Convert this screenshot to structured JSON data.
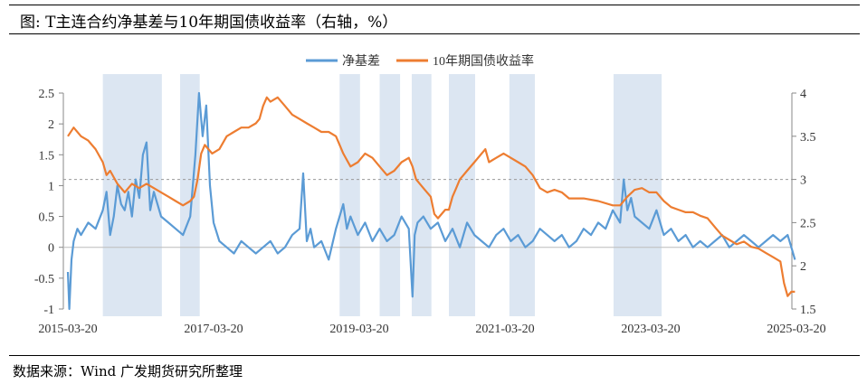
{
  "title": "图: T主连合约净基差与10年期国债收益率（右轴，%）",
  "source": "数据来源：Wind  广发期货研究所整理",
  "chart_data": {
    "type": "line",
    "title": "T主连合约净基差与10年期国债收益率（右轴，%）",
    "legend_placement": "top-center",
    "x_range": [
      2015.22,
      2025.22
    ],
    "x_ticks": [
      {
        "v": 2015.22,
        "label": "2015-03-20"
      },
      {
        "v": 2017.22,
        "label": "2017-03-20"
      },
      {
        "v": 2019.22,
        "label": "2019-03-20"
      },
      {
        "v": 2021.22,
        "label": "2021-03-20"
      },
      {
        "v": 2023.22,
        "label": "2023-03-20"
      },
      {
        "v": 2025.22,
        "label": "2025-03-20"
      }
    ],
    "y_left": {
      "range": [
        -1,
        2.5
      ],
      "ticks": [
        "-1",
        "-0.5",
        "0",
        "0.5",
        "1",
        "1.5",
        "2",
        "2.5"
      ]
    },
    "y_right": {
      "range": [
        1.5,
        4
      ],
      "ticks": [
        "1.5",
        "2",
        "2.5",
        "3",
        "3.5",
        "4"
      ]
    },
    "reference_line_right": 3.0,
    "shaded_periods": [
      [
        2015.7,
        2016.51
      ],
      [
        2016.76,
        2017.03
      ],
      [
        2018.95,
        2019.23
      ],
      [
        2019.5,
        2019.78
      ],
      [
        2019.94,
        2020.21
      ],
      [
        2020.45,
        2020.81
      ],
      [
        2021.28,
        2021.63
      ],
      [
        2022.71,
        2023.37
      ]
    ],
    "series": [
      {
        "name": "净基差",
        "axis": "left",
        "color": "#5b9bd5",
        "x": [
          2015.22,
          2015.24,
          2015.27,
          2015.3,
          2015.35,
          2015.4,
          2015.5,
          2015.6,
          2015.7,
          2015.75,
          2015.8,
          2015.85,
          2015.9,
          2015.95,
          2016.0,
          2016.05,
          2016.1,
          2016.15,
          2016.2,
          2016.25,
          2016.3,
          2016.35,
          2016.4,
          2016.5,
          2016.6,
          2016.7,
          2016.8,
          2016.9,
          2016.97,
          2017.02,
          2017.07,
          2017.12,
          2017.17,
          2017.22,
          2017.3,
          2017.4,
          2017.5,
          2017.6,
          2017.7,
          2017.8,
          2017.9,
          2018.0,
          2018.1,
          2018.2,
          2018.3,
          2018.4,
          2018.45,
          2018.5,
          2018.55,
          2018.6,
          2018.7,
          2018.8,
          2018.9,
          2019.0,
          2019.05,
          2019.1,
          2019.2,
          2019.3,
          2019.4,
          2019.5,
          2019.6,
          2019.7,
          2019.8,
          2019.9,
          2019.95,
          2019.98,
          2020.02,
          2020.1,
          2020.2,
          2020.3,
          2020.4,
          2020.5,
          2020.6,
          2020.7,
          2020.8,
          2020.9,
          2021.0,
          2021.1,
          2021.2,
          2021.3,
          2021.4,
          2021.5,
          2021.6,
          2021.7,
          2021.8,
          2021.9,
          2022.0,
          2022.1,
          2022.2,
          2022.3,
          2022.4,
          2022.5,
          2022.6,
          2022.7,
          2022.8,
          2022.85,
          2022.9,
          2022.95,
          2023.0,
          2023.1,
          2023.2,
          2023.3,
          2023.4,
          2023.5,
          2023.6,
          2023.7,
          2023.8,
          2023.9,
          2024.0,
          2024.1,
          2024.2,
          2024.3,
          2024.4,
          2024.5,
          2024.6,
          2024.7,
          2024.8,
          2024.9,
          2025.0,
          2025.1,
          2025.15,
          2025.2
        ],
        "y": [
          -0.4,
          -1.0,
          -0.2,
          0.1,
          0.3,
          0.2,
          0.4,
          0.3,
          0.6,
          0.9,
          0.2,
          0.5,
          1.0,
          0.7,
          0.6,
          0.9,
          0.5,
          1.1,
          0.8,
          1.5,
          1.7,
          0.6,
          0.9,
          0.5,
          0.4,
          0.3,
          0.2,
          0.5,
          1.5,
          2.5,
          1.8,
          2.3,
          1.0,
          0.4,
          0.1,
          0.0,
          -0.1,
          0.1,
          0.0,
          -0.1,
          0.0,
          0.1,
          -0.1,
          0.0,
          0.2,
          0.3,
          1.2,
          0.1,
          0.3,
          0.0,
          0.1,
          -0.2,
          0.3,
          0.7,
          0.3,
          0.5,
          0.2,
          0.4,
          0.1,
          0.3,
          0.1,
          0.2,
          0.5,
          0.3,
          -0.8,
          0.2,
          0.4,
          0.5,
          0.3,
          0.4,
          0.1,
          0.3,
          0.0,
          0.4,
          0.2,
          0.1,
          0.0,
          0.2,
          0.3,
          0.1,
          0.2,
          0.0,
          0.1,
          0.3,
          0.2,
          0.1,
          0.2,
          0.0,
          0.1,
          0.3,
          0.2,
          0.4,
          0.3,
          0.6,
          0.4,
          1.1,
          0.6,
          0.8,
          0.5,
          0.4,
          0.3,
          0.6,
          0.2,
          0.3,
          0.1,
          0.2,
          0.0,
          0.1,
          0.0,
          0.1,
          0.2,
          0.0,
          0.1,
          0.2,
          0.1,
          0.0,
          0.1,
          0.2,
          0.1,
          0.2,
          0.0,
          -0.2
        ]
      },
      {
        "name": "10年期国债收益率",
        "axis": "right",
        "color": "#ed7d31",
        "x": [
          2015.22,
          2015.3,
          2015.4,
          2015.5,
          2015.6,
          2015.7,
          2015.75,
          2015.8,
          2015.9,
          2016.0,
          2016.1,
          2016.2,
          2016.3,
          2016.4,
          2016.5,
          2016.6,
          2016.7,
          2016.8,
          2016.9,
          2016.95,
          2017.0,
          2017.05,
          2017.1,
          2017.2,
          2017.3,
          2017.4,
          2017.5,
          2017.6,
          2017.7,
          2017.8,
          2017.85,
          2017.9,
          2017.95,
          2018.0,
          2018.1,
          2018.2,
          2018.3,
          2018.4,
          2018.5,
          2018.6,
          2018.7,
          2018.8,
          2018.9,
          2018.95,
          2019.0,
          2019.1,
          2019.2,
          2019.3,
          2019.4,
          2019.5,
          2019.6,
          2019.7,
          2019.8,
          2019.9,
          2019.95,
          2020.0,
          2020.1,
          2020.2,
          2020.25,
          2020.3,
          2020.4,
          2020.45,
          2020.5,
          2020.55,
          2020.6,
          2020.7,
          2020.8,
          2020.9,
          2020.95,
          2021.0,
          2021.1,
          2021.2,
          2021.3,
          2021.4,
          2021.5,
          2021.6,
          2021.7,
          2021.8,
          2021.9,
          2022.0,
          2022.1,
          2022.3,
          2022.5,
          2022.7,
          2022.8,
          2022.9,
          2023.0,
          2023.1,
          2023.2,
          2023.3,
          2023.4,
          2023.5,
          2023.6,
          2023.7,
          2023.8,
          2023.9,
          2024.0,
          2024.1,
          2024.2,
          2024.3,
          2024.4,
          2024.5,
          2024.6,
          2024.7,
          2024.8,
          2024.9,
          2025.0,
          2025.05,
          2025.1,
          2025.15,
          2025.2
        ],
        "y": [
          3.5,
          3.6,
          3.5,
          3.45,
          3.35,
          3.2,
          3.05,
          3.1,
          2.95,
          2.85,
          2.95,
          2.9,
          2.95,
          2.9,
          2.85,
          2.8,
          2.75,
          2.7,
          2.75,
          2.8,
          3.0,
          3.3,
          3.4,
          3.3,
          3.35,
          3.5,
          3.55,
          3.6,
          3.6,
          3.65,
          3.7,
          3.85,
          3.95,
          3.9,
          3.95,
          3.85,
          3.75,
          3.7,
          3.65,
          3.6,
          3.55,
          3.55,
          3.5,
          3.4,
          3.3,
          3.15,
          3.2,
          3.3,
          3.25,
          3.15,
          3.05,
          3.1,
          3.2,
          3.25,
          3.15,
          3.0,
          2.9,
          2.8,
          2.6,
          2.55,
          2.65,
          2.65,
          2.8,
          2.9,
          3.0,
          3.1,
          3.2,
          3.3,
          3.35,
          3.2,
          3.25,
          3.3,
          3.25,
          3.2,
          3.15,
          3.05,
          2.9,
          2.85,
          2.88,
          2.85,
          2.78,
          2.78,
          2.75,
          2.7,
          2.7,
          2.8,
          2.88,
          2.9,
          2.85,
          2.85,
          2.75,
          2.68,
          2.65,
          2.62,
          2.62,
          2.58,
          2.55,
          2.45,
          2.35,
          2.3,
          2.25,
          2.28,
          2.22,
          2.2,
          2.15,
          2.1,
          2.05,
          1.8,
          1.65,
          1.7,
          1.7
        ]
      }
    ]
  }
}
